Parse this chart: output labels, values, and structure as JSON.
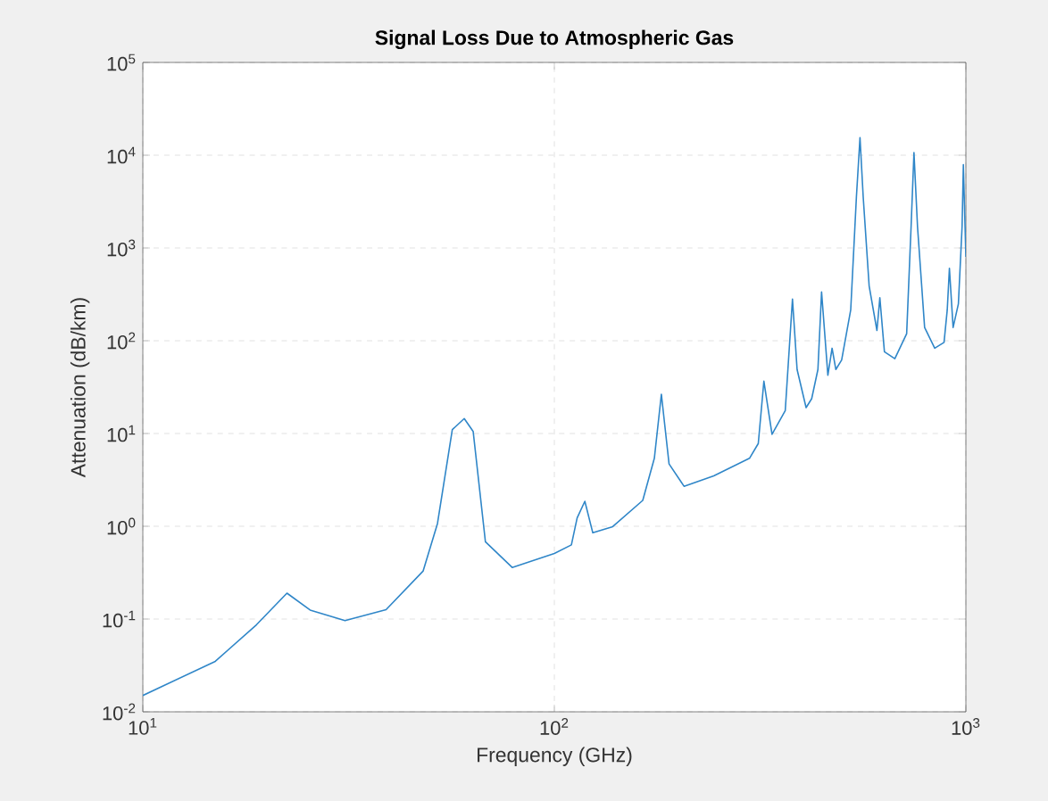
{
  "chart_data": {
    "type": "line",
    "title": "Signal Loss Due to Atmospheric Gas",
    "xlabel": "Frequency (GHz)",
    "ylabel": "Attenuation (dB/km)",
    "log": "xy",
    "grid": true,
    "xlim": [
      10,
      1000
    ],
    "ylim": [
      0.01,
      100000
    ],
    "xticks": [
      {
        "value": 10,
        "label": "10$^{1}$"
      },
      {
        "value": 100,
        "label": "10$^{2}$"
      },
      {
        "value": 1000,
        "label": "10$^{3}$"
      }
    ],
    "yticks": [
      {
        "value": 0.01,
        "label": "10$^{-2}$"
      },
      {
        "value": 0.1,
        "label": "10$^{-1}$"
      },
      {
        "value": 1,
        "label": "10$^{0}$"
      },
      {
        "value": 10,
        "label": "10$^{1}$"
      },
      {
        "value": 100,
        "label": "10$^{2}$"
      },
      {
        "value": 1000,
        "label": "10$^{3}$"
      },
      {
        "value": 10000,
        "label": "10$^{4}$"
      },
      {
        "value": 100000,
        "label": "10$^{5}$"
      }
    ],
    "x": [
      10,
      15,
      18.9,
      22.4,
      25.5,
      31,
      39,
      48,
      52,
      56.5,
      60.4,
      63.5,
      68,
      79,
      100,
      110,
      113.6,
      118.6,
      124,
      138.6,
      164,
      175,
      182,
      190,
      206.6,
      244,
      298,
      313,
      323,
      338,
      364,
      379,
      389,
      409,
      422,
      437,
      446,
      462,
      473,
      483,
      499,
      525,
      542,
      553,
      563,
      582,
      608,
      618,
      634,
      672,
      718,
      736,
      748,
      763,
      794,
      840,
      885,
      901,
      912,
      931,
      959,
      979,
      986,
      1000
    ],
    "series": [
      {
        "color": "#2f86c8",
        "values": [
          0.015,
          0.035,
          0.087,
          0.19,
          0.125,
          0.096,
          0.126,
          0.33,
          1.07,
          11,
          14.5,
          10.5,
          0.68,
          0.36,
          0.51,
          0.63,
          1.23,
          1.86,
          0.85,
          0.99,
          1.9,
          5.4,
          26.5,
          4.7,
          2.7,
          3.5,
          5.4,
          7.8,
          36.7,
          9.8,
          17.6,
          282,
          49,
          19,
          23.7,
          49,
          336,
          42.5,
          83,
          49,
          62,
          215,
          3550,
          15500,
          3550,
          390,
          129,
          290,
          76,
          64,
          119,
          1700,
          10700,
          1700,
          139,
          83,
          96,
          215,
          605,
          139,
          250,
          1700,
          7900,
          800
        ]
      }
    ]
  }
}
